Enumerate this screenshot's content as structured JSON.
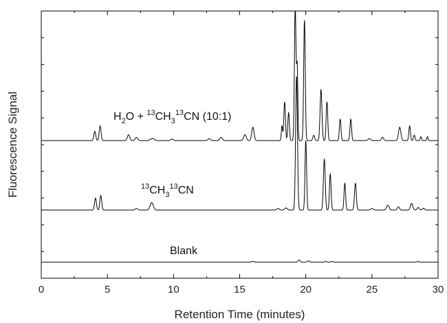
{
  "chart_data": {
    "type": "line",
    "xlabel": "Retention Time (minutes)",
    "ylabel": "Fluorescence Signal",
    "xlim": [
      0,
      30
    ],
    "ylim": [
      0,
      10
    ],
    "x_ticks": [
      0,
      5,
      10,
      15,
      20,
      25,
      30
    ],
    "y_tick_labels_shown": false,
    "grid": false,
    "legend": "none",
    "series": [
      {
        "label_parts": [
          "H",
          "2",
          "O + ",
          "13",
          "CH",
          "3",
          "13",
          "CN (10:1)"
        ],
        "baseline": 5.15,
        "color": "#000000",
        "peaks": [
          [
            4.05,
            0.35,
            0.07
          ],
          [
            4.45,
            0.55,
            0.07
          ],
          [
            6.6,
            0.22,
            0.09
          ],
          [
            7.2,
            0.12,
            0.1
          ],
          [
            8.4,
            0.08,
            0.15
          ],
          [
            9.9,
            0.06,
            0.1
          ],
          [
            12.7,
            0.07,
            0.1
          ],
          [
            13.6,
            0.12,
            0.1
          ],
          [
            15.4,
            0.22,
            0.1
          ],
          [
            16.0,
            0.5,
            0.09
          ],
          [
            18.2,
            0.55,
            0.05
          ],
          [
            18.4,
            1.45,
            0.06
          ],
          [
            18.7,
            1.05,
            0.06
          ],
          [
            19.2,
            5.0,
            0.06
          ],
          [
            19.35,
            2.7,
            0.05
          ],
          [
            19.9,
            4.5,
            0.06
          ],
          [
            20.6,
            0.2,
            0.07
          ],
          [
            21.15,
            1.9,
            0.07
          ],
          [
            21.6,
            1.45,
            0.06
          ],
          [
            22.6,
            0.8,
            0.06
          ],
          [
            23.4,
            0.8,
            0.06
          ],
          [
            24.8,
            0.07,
            0.1
          ],
          [
            25.8,
            0.13,
            0.08
          ],
          [
            27.1,
            0.5,
            0.09
          ],
          [
            27.85,
            0.55,
            0.06
          ],
          [
            28.2,
            0.2,
            0.06
          ],
          [
            28.7,
            0.15,
            0.05
          ],
          [
            29.2,
            0.15,
            0.05
          ]
        ]
      },
      {
        "label_parts": [
          "13",
          "CH",
          "3",
          "13",
          "CN"
        ],
        "baseline": 2.55,
        "color": "#000000",
        "peaks": [
          [
            4.1,
            0.45,
            0.07
          ],
          [
            4.5,
            0.55,
            0.07
          ],
          [
            7.2,
            0.06,
            0.1
          ],
          [
            8.35,
            0.28,
            0.12
          ],
          [
            17.9,
            0.06,
            0.1
          ],
          [
            18.5,
            0.08,
            0.1
          ],
          [
            19.3,
            5.0,
            0.07
          ],
          [
            20.0,
            2.6,
            0.06
          ],
          [
            21.4,
            1.9,
            0.07
          ],
          [
            21.85,
            1.35,
            0.06
          ],
          [
            22.95,
            1.0,
            0.06
          ],
          [
            23.75,
            1.0,
            0.07
          ],
          [
            25.0,
            0.06,
            0.1
          ],
          [
            26.2,
            0.18,
            0.1
          ],
          [
            27.0,
            0.12,
            0.08
          ],
          [
            28.0,
            0.25,
            0.09
          ],
          [
            28.5,
            0.1,
            0.08
          ],
          [
            28.9,
            0.07,
            0.08
          ]
        ]
      },
      {
        "label_parts": [
          "Blank"
        ],
        "baseline": 0.6,
        "color": "#000000",
        "peaks": [
          [
            16.0,
            0.03,
            0.1
          ],
          [
            19.5,
            0.08,
            0.08
          ],
          [
            20.2,
            0.05,
            0.08
          ],
          [
            21.5,
            0.03,
            0.08
          ],
          [
            22.0,
            0.03,
            0.08
          ],
          [
            28.5,
            0.03,
            0.08
          ]
        ]
      }
    ]
  }
}
